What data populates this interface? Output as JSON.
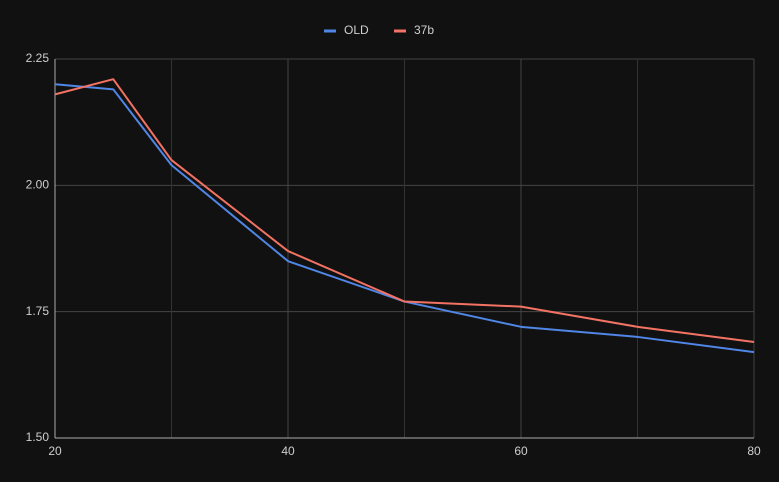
{
  "chart_data": {
    "type": "line",
    "x": [
      20,
      25,
      30,
      40,
      50,
      60,
      70,
      80
    ],
    "series": [
      {
        "name": "OLD",
        "color": "#5086e6",
        "values": [
          2.2,
          2.19,
          2.04,
          1.85,
          1.77,
          1.72,
          1.7,
          1.67
        ]
      },
      {
        "name": "37b",
        "color": "#f27363",
        "values": [
          2.18,
          2.21,
          2.05,
          1.87,
          1.77,
          1.76,
          1.72,
          1.69
        ]
      }
    ],
    "xlim": [
      20,
      80
    ],
    "xticks": [
      20,
      40,
      60,
      80
    ],
    "minor_xgrid": [
      30,
      50,
      70
    ],
    "ylim": [
      1.5,
      2.25
    ],
    "yticks": [
      {
        "value": 1.5,
        "label": "1.50"
      },
      {
        "value": 1.75,
        "label": "1.75"
      },
      {
        "value": 2,
        "label": "2.00"
      },
      {
        "value": 2.25,
        "label": "2.25"
      }
    ],
    "grid": true,
    "legend": "top"
  }
}
